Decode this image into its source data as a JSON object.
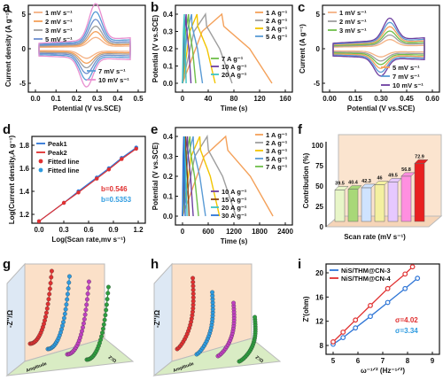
{
  "figure_labels": [
    "a",
    "b",
    "c",
    "d",
    "e",
    "f",
    "g",
    "h",
    "i"
  ],
  "chart_data": [
    {
      "panel": "a",
      "type": "line",
      "xlabel": "Potential (V vs.SCE)",
      "ylabel": "Current density (A g⁻¹)",
      "xlim": [
        -0.05,
        0.55
      ],
      "ylim": [
        -9,
        9
      ],
      "xticks": [
        "0.0",
        "0.1",
        "0.2",
        "0.3",
        "0.4",
        "0.5"
      ],
      "yticks": [
        "-5",
        "0",
        "5"
      ],
      "legend": [
        "1 mV s⁻¹",
        "2 mV s⁻¹",
        "3 mV s⁻¹",
        "5 mV s⁻¹",
        "7 mV s⁻¹",
        "10 mV s⁻¹"
      ],
      "series": [
        {
          "name": "1 mV s⁻¹",
          "color": "#f4b183",
          "scale": 0.25
        },
        {
          "name": "2 mV s⁻¹",
          "color": "#f4a15a",
          "scale": 0.38
        },
        {
          "name": "3 mV s⁻¹",
          "color": "#9e9e9e",
          "scale": 0.5
        },
        {
          "name": "5 mV s⁻¹",
          "color": "#6d8fcf",
          "scale": 0.65
        },
        {
          "name": "7 mV s⁻¹",
          "color": "#5a9bd5",
          "scale": 0.82
        },
        {
          "name": "10 mV s⁻¹",
          "color": "#e88fd0",
          "scale": 1.0
        }
      ]
    },
    {
      "panel": "b",
      "type": "line",
      "xlabel": "Time (s)",
      "ylabel": "Potential (V vs.SCE)",
      "xlim": [
        0,
        170
      ],
      "ylim": [
        -0.02,
        0.42
      ],
      "xticks": [
        "0",
        "40",
        "80",
        "120",
        "160"
      ],
      "yticks": [
        "0.0",
        "0.1",
        "0.2",
        "0.3",
        "0.4"
      ],
      "legend": [
        "1 A g⁻¹",
        "2 A g⁻¹",
        "3 A g⁻¹",
        "5 A g⁻¹",
        "7 A g⁻¹",
        "10 A g⁻¹",
        "20 A g⁻¹"
      ],
      "series": [
        {
          "name": "1 A g⁻¹",
          "color": "#f4a15a",
          "charge": 65,
          "total": 148
        },
        {
          "name": "2 A g⁻¹",
          "color": "#9e9e9e",
          "charge": 38,
          "total": 82
        },
        {
          "name": "3 A g⁻¹",
          "color": "#f2c500",
          "charge": 24,
          "total": 54
        },
        {
          "name": "5 A g⁻¹",
          "color": "#5a9bd5",
          "charge": 15,
          "total": 33
        },
        {
          "name": "7 A g⁻¹",
          "color": "#6fbf4a",
          "charge": 10,
          "total": 22
        },
        {
          "name": "10 A g⁻¹",
          "color": "#6d3fa0",
          "charge": 6,
          "total": 14
        },
        {
          "name": "20 A g⁻¹",
          "color": "#3fc4c4",
          "charge": 3,
          "total": 6
        }
      ]
    },
    {
      "panel": "c",
      "type": "line",
      "xlabel": "Potential (V vs.SCE)",
      "ylabel": "Current (A g⁻¹)",
      "xlim": [
        -0.05,
        0.65
      ],
      "ylim": [
        -9,
        9
      ],
      "xticks": [
        "0.00",
        "0.15",
        "0.30",
        "0.45",
        "0.60"
      ],
      "yticks": [
        "-5",
        "0",
        "5"
      ],
      "legend": [
        "1 mV s⁻¹",
        "2 mV s⁻¹",
        "3 mV s⁻¹",
        "5 mV s⁻¹",
        "7 mV s⁻¹",
        "10 mV s⁻¹"
      ],
      "series": [
        {
          "name": "1 mV s⁻¹",
          "color": "#f4b183",
          "scale": 0.3
        },
        {
          "name": "2 mV s⁻¹",
          "color": "#9e9e9e",
          "scale": 0.45
        },
        {
          "name": "3 mV s⁻¹",
          "color": "#6fbf4a",
          "scale": 0.58
        },
        {
          "name": "5 mV s⁻¹",
          "color": "#f4a15a",
          "scale": 0.72
        },
        {
          "name": "7 mV s⁻¹",
          "color": "#5a9bd5",
          "scale": 0.86
        },
        {
          "name": "10 mV s⁻¹",
          "color": "#6d3fa0",
          "scale": 1.0
        }
      ]
    },
    {
      "panel": "d",
      "type": "scatter",
      "xlabel": "Log(Scan rate,mv s⁻¹)",
      "ylabel": "Log(Current density,A g⁻¹)",
      "xlim": [
        -0.05,
        1.3
      ],
      "ylim": [
        1.05,
        1.85
      ],
      "xticks": [
        "0.0",
        "0.3",
        "0.6",
        "0.9",
        "1.2"
      ],
      "yticks": [
        "1.2",
        "1.4",
        "1.6",
        "1.8"
      ],
      "legend": [
        "Peak1",
        "Peak2",
        "Fitted line",
        "Fitted line"
      ],
      "series": [
        {
          "name": "Peak1",
          "color": "#2e75d6",
          "x": [
            0,
            0.301,
            0.477,
            0.699,
            0.845,
            1.0,
            1.176
          ],
          "y": [
            1.14,
            1.3,
            1.4,
            1.52,
            1.6,
            1.69,
            1.78
          ]
        },
        {
          "name": "Peak2",
          "color": "#e03030",
          "x": [
            0,
            0.301,
            0.477,
            0.699,
            0.845,
            1.0,
            1.176
          ],
          "y": [
            1.14,
            1.3,
            1.39,
            1.51,
            1.59,
            1.68,
            1.77
          ]
        }
      ],
      "annotations": [
        {
          "text": "b=0.546",
          "color": "#e03030"
        },
        {
          "text": "b=0.5353",
          "color": "#2e9be0"
        }
      ]
    },
    {
      "panel": "e",
      "type": "line",
      "xlabel": "Time (s)",
      "ylabel": "Potential (V vs.SCE)",
      "xlim": [
        0,
        2500
      ],
      "ylim": [
        -0.02,
        0.42
      ],
      "xticks": [
        "0",
        "600",
        "1200",
        "1800",
        "2400"
      ],
      "yticks": [
        "0.0",
        "0.1",
        "0.2",
        "0.3",
        "0.4"
      ],
      "legend": [
        "1 A g⁻¹",
        "2 A g⁻¹",
        "3 A g⁻¹",
        "5 A g⁻¹",
        "7 A g⁻¹",
        "10 A g⁻¹",
        "15 A g⁻¹",
        "20 A g⁻¹",
        "30 A g⁻¹"
      ],
      "series": [
        {
          "name": "1 A g⁻¹",
          "color": "#f4a15a",
          "charge": 1050,
          "total": 2200
        },
        {
          "name": "2 A g⁻¹",
          "color": "#9e9e9e",
          "charge": 600,
          "total": 1300
        },
        {
          "name": "3 A g⁻¹",
          "color": "#f2c500",
          "charge": 420,
          "total": 900
        },
        {
          "name": "5 A g⁻¹",
          "color": "#5a9bd5",
          "charge": 260,
          "total": 560
        },
        {
          "name": "7 A g⁻¹",
          "color": "#6fbf4a",
          "charge": 180,
          "total": 390
        },
        {
          "name": "10 A g⁻¹",
          "color": "#6d3fa0",
          "charge": 120,
          "total": 260
        },
        {
          "name": "15 A g⁻¹",
          "color": "#8b4513",
          "charge": 75,
          "total": 160
        },
        {
          "name": "20 A g⁻¹",
          "color": "#3fc4c4",
          "charge": 50,
          "total": 110
        },
        {
          "name": "30 A g⁻¹",
          "color": "#2e75d6",
          "charge": 30,
          "total": 65
        }
      ]
    },
    {
      "panel": "f",
      "type": "bar",
      "xlabel": "Scan rate (mV s⁻¹)",
      "ylabel": "Contribution (%)",
      "ylim": [
        0,
        100
      ],
      "yticks": [
        "0",
        "25",
        "50",
        "75",
        "100"
      ],
      "values": [
        39.5,
        40.4,
        42.3,
        46,
        49.5,
        56.8,
        72.9
      ],
      "labels": [
        "39.5",
        "40.4",
        "42.3",
        "46",
        "49.5",
        "56.8",
        "72.9"
      ],
      "colors": [
        "#e8f6c8",
        "#a8d878",
        "#cfe3ff",
        "#f4f0a0",
        "#e6c8ff",
        "#ff8fe0",
        "#e82020"
      ]
    },
    {
      "panel": "g",
      "type": "line",
      "xlabel": "Z'/Ω",
      "ylabel": "-Z''/Ω",
      "zlabel": "Amplitude",
      "series": [
        {
          "color": "#e03030"
        },
        {
          "color": "#2e9be0"
        },
        {
          "color": "#c040c0"
        },
        {
          "color": "#2e9e3e"
        }
      ]
    },
    {
      "panel": "h",
      "type": "line",
      "xlabel": "Z'/Ω",
      "ylabel": "-Z''/Ω",
      "zlabel": "Amplitude",
      "series": [
        {
          "color": "#e03030"
        },
        {
          "color": "#2e9be0"
        },
        {
          "color": "#c040c0"
        },
        {
          "color": "#2e9e3e"
        }
      ]
    },
    {
      "panel": "i",
      "type": "line",
      "xlabel": "ω⁻¹ᐟ² (Hz⁻¹ᐟ²)",
      "ylabel": "Z'(ohm)",
      "xlim": [
        4.6,
        9.0
      ],
      "ylim": [
        6.5,
        22.5
      ],
      "xticks": [
        "5",
        "6",
        "7",
        "8",
        "9"
      ],
      "yticks": [
        "8",
        "12",
        "16",
        "20"
      ],
      "legend": [
        "NiS/THM@CN-3",
        "NiS/THM@CN-4"
      ],
      "series": [
        {
          "name": "NiS/THM@CN-3",
          "color": "#2e75d6",
          "x": [
            5.0,
            5.4,
            5.9,
            6.5,
            7.2,
            7.9,
            8.4
          ],
          "y": [
            8.2,
            9.3,
            10.9,
            12.8,
            15.1,
            17.4,
            19.1
          ]
        },
        {
          "name": "NiS/THM@CN-4",
          "color": "#e03030",
          "x": [
            5.0,
            5.4,
            5.9,
            6.5,
            7.2,
            7.9,
            8.2
          ],
          "y": [
            8.6,
            10.2,
            12.2,
            14.6,
            17.4,
            19.8,
            21.0
          ]
        }
      ],
      "annotations": [
        {
          "text": "σ=4.02",
          "color": "#e03030"
        },
        {
          "text": "σ=3.34",
          "color": "#2e9be0"
        }
      ]
    }
  ]
}
